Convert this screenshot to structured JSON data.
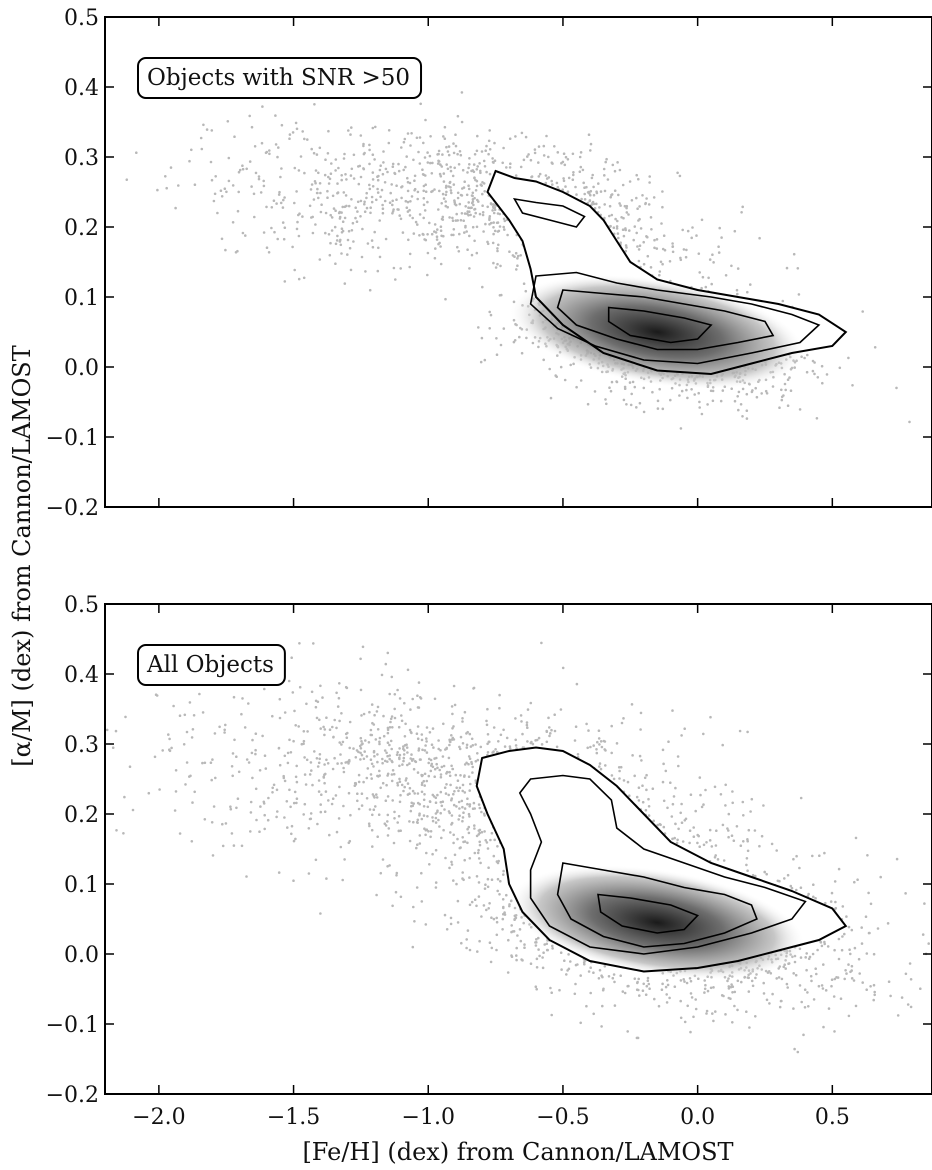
{
  "xlabel": "[Fe/H] (dex) from Cannon/LAMOST",
  "ylabel": "[α/M] (dex) from Cannon/LAMOST",
  "chart_data": [
    {
      "type": "scatter",
      "annotation": "Objects with SNR >50",
      "xlim": [
        -2.2,
        0.87
      ],
      "ylim": [
        -0.2,
        0.5
      ],
      "x_ticks": [
        -2.0,
        -1.5,
        -1.0,
        -0.5,
        0.0,
        0.5
      ],
      "x_tick_labels": [
        "",
        "",
        "",
        "",
        "",
        ""
      ],
      "y_ticks": [
        -0.2,
        -0.1,
        0.0,
        0.1,
        0.2,
        0.3,
        0.4,
        0.5
      ],
      "y_tick_labels": [
        "−0.2",
        "−0.1",
        "0.0",
        "0.1",
        "0.2",
        "0.3",
        "0.4",
        "0.5"
      ],
      "density_peak": {
        "x": -0.15,
        "y": 0.05
      },
      "contours": [
        [
          [
            -0.75,
            0.28
          ],
          [
            -0.68,
            0.27
          ],
          [
            -0.6,
            0.265
          ],
          [
            -0.5,
            0.25
          ],
          [
            -0.45,
            0.24
          ],
          [
            -0.4,
            0.23
          ],
          [
            -0.35,
            0.21
          ],
          [
            -0.3,
            0.18
          ],
          [
            -0.25,
            0.15
          ],
          [
            -0.15,
            0.125
          ],
          [
            0.0,
            0.11
          ],
          [
            0.15,
            0.1
          ],
          [
            0.3,
            0.09
          ],
          [
            0.45,
            0.075
          ],
          [
            0.55,
            0.05
          ],
          [
            0.5,
            0.03
          ],
          [
            0.35,
            0.02
          ],
          [
            0.2,
            0.005
          ],
          [
            0.05,
            -0.01
          ],
          [
            -0.15,
            -0.005
          ],
          [
            -0.35,
            0.02
          ],
          [
            -0.5,
            0.06
          ],
          [
            -0.6,
            0.1
          ],
          [
            -0.62,
            0.14
          ],
          [
            -0.65,
            0.18
          ],
          [
            -0.7,
            0.21
          ],
          [
            -0.78,
            0.25
          ],
          [
            -0.75,
            0.28
          ]
        ],
        [
          [
            -0.6,
            0.13
          ],
          [
            -0.45,
            0.135
          ],
          [
            -0.3,
            0.12
          ],
          [
            -0.15,
            0.11
          ],
          [
            0.05,
            0.1
          ],
          [
            0.2,
            0.09
          ],
          [
            0.35,
            0.075
          ],
          [
            0.45,
            0.06
          ],
          [
            0.38,
            0.035
          ],
          [
            0.2,
            0.02
          ],
          [
            0.0,
            0.005
          ],
          [
            -0.2,
            0.01
          ],
          [
            -0.38,
            0.03
          ],
          [
            -0.52,
            0.055
          ],
          [
            -0.62,
            0.09
          ],
          [
            -0.6,
            0.13
          ]
        ],
        [
          [
            -0.5,
            0.11
          ],
          [
            -0.35,
            0.105
          ],
          [
            -0.2,
            0.1
          ],
          [
            -0.05,
            0.09
          ],
          [
            0.1,
            0.08
          ],
          [
            0.25,
            0.065
          ],
          [
            0.28,
            0.045
          ],
          [
            0.15,
            0.035
          ],
          [
            0.0,
            0.025
          ],
          [
            -0.15,
            0.025
          ],
          [
            -0.3,
            0.04
          ],
          [
            -0.45,
            0.06
          ],
          [
            -0.52,
            0.085
          ],
          [
            -0.5,
            0.11
          ]
        ],
        [
          [
            -0.33,
            0.085
          ],
          [
            -0.2,
            0.08
          ],
          [
            -0.05,
            0.07
          ],
          [
            0.05,
            0.06
          ],
          [
            0.0,
            0.04
          ],
          [
            -0.1,
            0.035
          ],
          [
            -0.25,
            0.045
          ],
          [
            -0.33,
            0.065
          ],
          [
            -0.33,
            0.085
          ]
        ],
        [
          [
            -0.68,
            0.24
          ],
          [
            -0.6,
            0.235
          ],
          [
            -0.5,
            0.23
          ],
          [
            -0.42,
            0.215
          ],
          [
            -0.45,
            0.2
          ],
          [
            -0.55,
            0.21
          ],
          [
            -0.65,
            0.22
          ],
          [
            -0.68,
            0.24
          ]
        ]
      ]
    },
    {
      "type": "scatter",
      "annotation": "All Objects",
      "xlim": [
        -2.2,
        0.87
      ],
      "ylim": [
        -0.2,
        0.5
      ],
      "x_ticks": [
        -2.0,
        -1.5,
        -1.0,
        -0.5,
        0.0,
        0.5
      ],
      "x_tick_labels": [
        "−2.0",
        "−1.5",
        "−1.0",
        "−0.5",
        "0.0",
        "0.5"
      ],
      "y_ticks": [
        -0.2,
        -0.1,
        0.0,
        0.1,
        0.2,
        0.3,
        0.4,
        0.5
      ],
      "y_tick_labels": [
        "−0.2",
        "−0.1",
        "0.0",
        "0.1",
        "0.2",
        "0.3",
        "0.4",
        "0.5"
      ],
      "density_peak": {
        "x": -0.15,
        "y": 0.045
      },
      "contours": [
        [
          [
            -0.8,
            0.28
          ],
          [
            -0.7,
            0.29
          ],
          [
            -0.6,
            0.295
          ],
          [
            -0.5,
            0.29
          ],
          [
            -0.4,
            0.27
          ],
          [
            -0.3,
            0.24
          ],
          [
            -0.2,
            0.2
          ],
          [
            -0.1,
            0.16
          ],
          [
            0.05,
            0.13
          ],
          [
            0.2,
            0.11
          ],
          [
            0.35,
            0.09
          ],
          [
            0.5,
            0.065
          ],
          [
            0.55,
            0.04
          ],
          [
            0.45,
            0.02
          ],
          [
            0.3,
            0.005
          ],
          [
            0.15,
            -0.01
          ],
          [
            0.0,
            -0.02
          ],
          [
            -0.2,
            -0.025
          ],
          [
            -0.4,
            -0.01
          ],
          [
            -0.55,
            0.02
          ],
          [
            -0.65,
            0.06
          ],
          [
            -0.7,
            0.1
          ],
          [
            -0.72,
            0.15
          ],
          [
            -0.78,
            0.2
          ],
          [
            -0.82,
            0.24
          ],
          [
            -0.8,
            0.28
          ]
        ],
        [
          [
            -0.62,
            0.25
          ],
          [
            -0.5,
            0.255
          ],
          [
            -0.4,
            0.25
          ],
          [
            -0.32,
            0.22
          ],
          [
            -0.3,
            0.18
          ],
          [
            -0.2,
            0.15
          ],
          [
            -0.05,
            0.13
          ],
          [
            0.1,
            0.11
          ],
          [
            0.25,
            0.095
          ],
          [
            0.4,
            0.075
          ],
          [
            0.35,
            0.05
          ],
          [
            0.2,
            0.03
          ],
          [
            0.0,
            0.01
          ],
          [
            -0.2,
            0.0
          ],
          [
            -0.4,
            0.01
          ],
          [
            -0.55,
            0.04
          ],
          [
            -0.62,
            0.08
          ],
          [
            -0.62,
            0.12
          ],
          [
            -0.58,
            0.16
          ],
          [
            -0.62,
            0.2
          ],
          [
            -0.66,
            0.23
          ],
          [
            -0.62,
            0.25
          ]
        ],
        [
          [
            -0.5,
            0.13
          ],
          [
            -0.35,
            0.12
          ],
          [
            -0.2,
            0.11
          ],
          [
            -0.05,
            0.095
          ],
          [
            0.1,
            0.085
          ],
          [
            0.2,
            0.07
          ],
          [
            0.22,
            0.05
          ],
          [
            0.1,
            0.03
          ],
          [
            -0.05,
            0.015
          ],
          [
            -0.2,
            0.01
          ],
          [
            -0.35,
            0.025
          ],
          [
            -0.47,
            0.05
          ],
          [
            -0.52,
            0.085
          ],
          [
            -0.5,
            0.13
          ]
        ],
        [
          [
            -0.37,
            0.085
          ],
          [
            -0.25,
            0.08
          ],
          [
            -0.1,
            0.07
          ],
          [
            0.0,
            0.055
          ],
          [
            -0.05,
            0.035
          ],
          [
            -0.15,
            0.03
          ],
          [
            -0.28,
            0.04
          ],
          [
            -0.36,
            0.06
          ],
          [
            -0.37,
            0.085
          ]
        ]
      ]
    }
  ]
}
